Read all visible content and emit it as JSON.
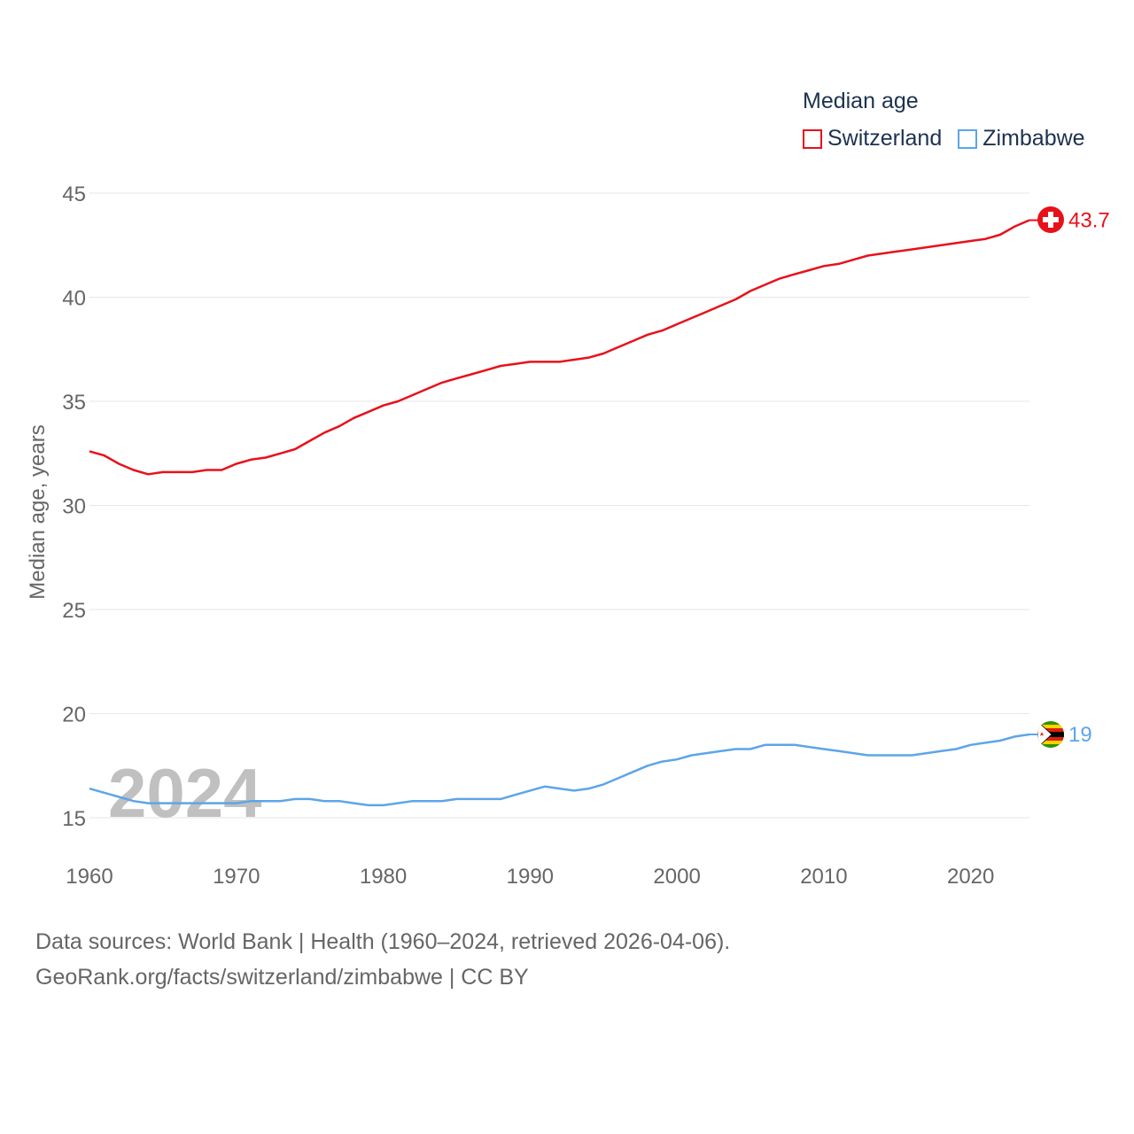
{
  "legend": {
    "title": "Median age"
  },
  "year_overlay": "2024",
  "source": {
    "line1": "Data sources: World Bank | Health (1960–2024, retrieved 2026-04-06).",
    "line2": "GeoRank.org/facts/switzerland/zimbabwe | CC BY"
  },
  "chart_data": {
    "type": "line",
    "title": "Median age",
    "xlabel": "",
    "ylabel": "Median age, years",
    "xlim": [
      1960,
      2024
    ],
    "ylim": [
      13.5,
      46
    ],
    "x_ticks": [
      1960,
      1970,
      1980,
      1990,
      2000,
      2010,
      2020
    ],
    "y_ticks": [
      15,
      20,
      25,
      30,
      35,
      40,
      45
    ],
    "grid": true,
    "legend_position": "top-right",
    "x": [
      1960,
      1961,
      1962,
      1963,
      1964,
      1965,
      1966,
      1967,
      1968,
      1969,
      1970,
      1971,
      1972,
      1973,
      1974,
      1975,
      1976,
      1977,
      1978,
      1979,
      1980,
      1981,
      1982,
      1983,
      1984,
      1985,
      1986,
      1987,
      1988,
      1989,
      1990,
      1991,
      1992,
      1993,
      1994,
      1995,
      1996,
      1997,
      1998,
      1999,
      2000,
      2001,
      2002,
      2003,
      2004,
      2005,
      2006,
      2007,
      2008,
      2009,
      2010,
      2011,
      2012,
      2013,
      2014,
      2015,
      2016,
      2017,
      2018,
      2019,
      2020,
      2021,
      2022,
      2023,
      2024
    ],
    "series": [
      {
        "name": "Switzerland",
        "color": "#e8111a",
        "end_label": "43.7",
        "values": [
          32.6,
          32.4,
          32.0,
          31.7,
          31.5,
          31.6,
          31.6,
          31.6,
          31.7,
          31.7,
          32.0,
          32.2,
          32.3,
          32.5,
          32.7,
          33.1,
          33.5,
          33.8,
          34.2,
          34.5,
          34.8,
          35.0,
          35.3,
          35.6,
          35.9,
          36.1,
          36.3,
          36.5,
          36.7,
          36.8,
          36.9,
          36.9,
          36.9,
          37.0,
          37.1,
          37.3,
          37.6,
          37.9,
          38.2,
          38.4,
          38.7,
          39.0,
          39.3,
          39.6,
          39.9,
          40.3,
          40.6,
          40.9,
          41.1,
          41.3,
          41.5,
          41.6,
          41.8,
          42.0,
          42.1,
          42.2,
          42.3,
          42.4,
          42.5,
          42.6,
          42.7,
          42.8,
          43.0,
          43.4,
          43.7
        ]
      },
      {
        "name": "Zimbabwe",
        "color": "#5da5e8",
        "end_label": "19",
        "values": [
          16.4,
          16.2,
          16.0,
          15.8,
          15.7,
          15.7,
          15.7,
          15.7,
          15.7,
          15.7,
          15.7,
          15.8,
          15.8,
          15.8,
          15.9,
          15.9,
          15.8,
          15.8,
          15.7,
          15.6,
          15.6,
          15.7,
          15.8,
          15.8,
          15.8,
          15.9,
          15.9,
          15.9,
          15.9,
          16.1,
          16.3,
          16.5,
          16.4,
          16.3,
          16.4,
          16.6,
          16.9,
          17.2,
          17.5,
          17.7,
          17.8,
          18.0,
          18.1,
          18.2,
          18.3,
          18.3,
          18.5,
          18.5,
          18.5,
          18.4,
          18.3,
          18.2,
          18.1,
          18.0,
          18.0,
          18.0,
          18.0,
          18.1,
          18.2,
          18.3,
          18.5,
          18.6,
          18.7,
          18.9,
          19.0
        ]
      }
    ]
  }
}
